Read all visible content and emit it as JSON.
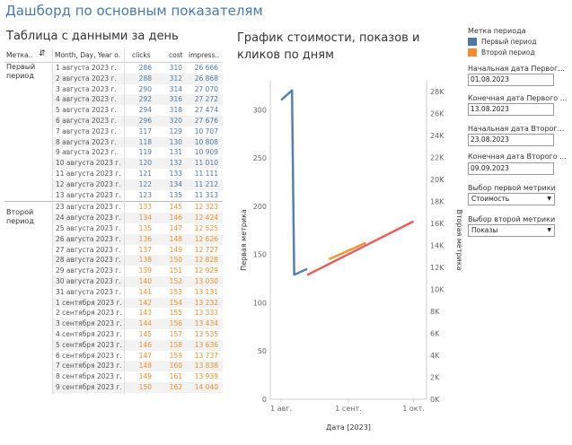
{
  "page": {
    "title": "Дашборд по основным показателям"
  },
  "table": {
    "title": "Таблица с данными за день",
    "headers": {
      "period": "Метка..",
      "date": "Month, Day, Year o..",
      "clicks": "clicks",
      "cost": "cost",
      "impressions": "impress.."
    },
    "period1_label": "Первый\nпериод",
    "period2_label": "Второй\nпериод",
    "rows1": [
      [
        "1 августа 2023 г.",
        "286",
        "310",
        "26 666"
      ],
      [
        "2 августа 2023 г.",
        "288",
        "312",
        "26 868"
      ],
      [
        "3 августа 2023 г.",
        "290",
        "314",
        "27 070"
      ],
      [
        "4 августа 2023 г.",
        "292",
        "316",
        "27 272"
      ],
      [
        "5 августа 2023 г.",
        "294",
        "318",
        "27 474"
      ],
      [
        "6 августа 2023 г.",
        "296",
        "320",
        "27 676"
      ],
      [
        "7 августа 2023 г.",
        "117",
        "129",
        "10 707"
      ],
      [
        "8 августа 2023 г.",
        "118",
        "130",
        "10 808"
      ],
      [
        "9 августа 2023 г.",
        "119",
        "131",
        "10 909"
      ],
      [
        "10 августа 2023 г.",
        "120",
        "132",
        "11 010"
      ],
      [
        "11 августа 2023 г.",
        "121",
        "133",
        "11 111"
      ],
      [
        "12 августа 2023 г.",
        "122",
        "134",
        "11 212"
      ],
      [
        "13 августа 2023 г.",
        "123",
        "135",
        "11 313"
      ]
    ],
    "rows2": [
      [
        "23 августа 2023 г.",
        "133",
        "145",
        "12 323"
      ],
      [
        "24 августа 2023 г.",
        "134",
        "146",
        "12 424"
      ],
      [
        "25 августа 2023 г.",
        "135",
        "147",
        "12 525"
      ],
      [
        "26 августа 2023 г.",
        "136",
        "148",
        "12 626"
      ],
      [
        "27 августа 2023 г.",
        "137",
        "149",
        "12 727"
      ],
      [
        "28 августа 2023 г.",
        "138",
        "150",
        "12 828"
      ],
      [
        "29 августа 2023 г.",
        "139",
        "151",
        "12 929"
      ],
      [
        "30 августа 2023 г.",
        "140",
        "152",
        "13 030"
      ],
      [
        "31 августа 2023 г.",
        "141",
        "153",
        "13 131"
      ],
      [
        "1 сентября 2023 г.",
        "142",
        "154",
        "13 232"
      ],
      [
        "2 сентября 2023 г.",
        "143",
        "155",
        "13 333"
      ],
      [
        "3 сентября 2023 г.",
        "144",
        "156",
        "13 434"
      ],
      [
        "4 сентября 2023 г.",
        "145",
        "157",
        "13 535"
      ],
      [
        "5 сентября 2023 г.",
        "146",
        "158",
        "13 636"
      ],
      [
        "6 сентября 2023 г.",
        "147",
        "159",
        "13 737"
      ],
      [
        "7 сентября 2023 г.",
        "148",
        "160",
        "13 838"
      ],
      [
        "8 сентября 2023 г.",
        "149",
        "161",
        "13 939"
      ],
      [
        "9 сентября 2023 г.",
        "150",
        "162",
        "14 040"
      ]
    ],
    "colors": {
      "period1": "#4e79a7",
      "period2": "#f28e2b"
    }
  },
  "chart": {
    "title": "График стоимости, показов и кликов по дням"
  },
  "chart_data": {
    "type": "line",
    "title": "График стоимости, показов и кликов по дням",
    "xlabel": "Дата [2023]",
    "ylabel_left": "Первая метрика",
    "ylabel_right": "Вторая метрика",
    "x_ticks": [
      "1 авг.",
      "1 сент.",
      "1 окт."
    ],
    "y_left_ticks": [
      "0",
      "50",
      "100",
      "150",
      "200",
      "250",
      "300"
    ],
    "y_right_ticks": [
      "0K",
      "2K",
      "4K",
      "6K",
      "8K",
      "10K",
      "12K",
      "14K",
      "16K",
      "18K",
      "20K",
      "22K",
      "24K",
      "26K",
      "28K"
    ],
    "ylim_left": [
      0,
      330
    ],
    "ylim_right": [
      0,
      29000
    ],
    "xlim": [
      "2023-07-27",
      "2023-10-07"
    ],
    "series": [
      {
        "name": "Первый период",
        "metric": "Стоимость",
        "color": "#4e79a7",
        "x": [
          "2023-08-01",
          "2023-08-02",
          "2023-08-03",
          "2023-08-04",
          "2023-08-05",
          "2023-08-06",
          "2023-08-07",
          "2023-08-08",
          "2023-08-09",
          "2023-08-10",
          "2023-08-11",
          "2023-08-12",
          "2023-08-13"
        ],
        "values": [
          310,
          312,
          314,
          316,
          318,
          320,
          129,
          130,
          131,
          132,
          133,
          134,
          135
        ]
      },
      {
        "name": "Второй период",
        "metric": "Стоимость",
        "color": "#f28e2b",
        "x": [
          "2023-08-23",
          "2023-08-24",
          "2023-08-25",
          "2023-08-26",
          "2023-08-27",
          "2023-08-28",
          "2023-08-29",
          "2023-08-30",
          "2023-08-31",
          "2023-09-01",
          "2023-09-02",
          "2023-09-03",
          "2023-09-04",
          "2023-09-05",
          "2023-09-06",
          "2023-09-07",
          "2023-09-08",
          "2023-09-09"
        ],
        "values": [
          145,
          146,
          147,
          148,
          149,
          150,
          151,
          152,
          153,
          154,
          155,
          156,
          157,
          158,
          159,
          160,
          161,
          162
        ]
      },
      {
        "metric": "Показы",
        "color": "#e15759",
        "x": [
          "2023-08-13",
          "2023-10-01"
        ],
        "values": [
          11313,
          16200
        ]
      }
    ]
  },
  "controls": {
    "legend_title": "Метка периода",
    "legend_items": [
      {
        "label": "Первый период",
        "color": "#4e79a7"
      },
      {
        "label": "Второй период",
        "color": "#f28e2b"
      }
    ],
    "start1_label": "Начальная дата Первог...",
    "start1_value": "01.08.2023",
    "end1_label": "Конечная дата Первого ...",
    "end1_value": "13.08.2023",
    "start2_label": "Начальная дата Второг...",
    "start2_value": "23.08.2023",
    "end2_label": "Конечная дата Второго ...",
    "end2_value": "09.09.2023",
    "metric1_label": "Выбор первой метрики",
    "metric1_value": "Стоимость",
    "metric2_label": "Выбор второй метрики",
    "metric2_value": "Показы"
  }
}
